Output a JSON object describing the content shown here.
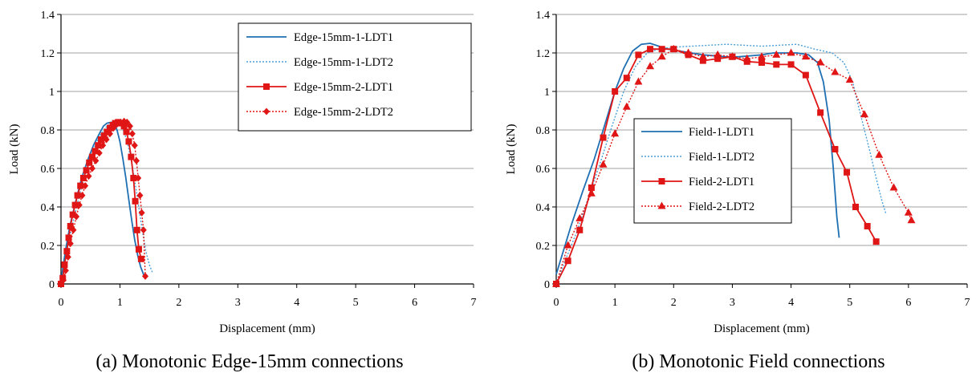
{
  "chart_data": [
    {
      "type": "line",
      "caption": "(a) Monotonic Edge-15mm connections",
      "xlabel": "Displacement (mm)",
      "ylabel": "Load (kN)",
      "xlim": [
        0,
        7
      ],
      "ylim": [
        0,
        1.4
      ],
      "xticks": [
        "0",
        "1",
        "2",
        "3",
        "4",
        "5",
        "6",
        "7"
      ],
      "yticks": [
        "0",
        "0.2",
        "0.4",
        "0.6",
        "0.8",
        "1",
        "1.2",
        "1.4"
      ],
      "grid": "horizontal",
      "legend_position": "top-right",
      "series": [
        {
          "name": "Edge-15mm-1-LDT1",
          "color": "#1f6fb3",
          "dash": "solid",
          "marker": "none",
          "x": [
            0,
            0.03,
            0.08,
            0.15,
            0.25,
            0.35,
            0.45,
            0.55,
            0.65,
            0.72,
            0.78,
            0.85,
            0.9,
            0.95,
            1.0,
            1.05,
            1.1,
            1.15,
            1.2,
            1.25,
            1.3,
            1.35,
            1.4,
            1.45
          ],
          "y": [
            0,
            0.08,
            0.18,
            0.3,
            0.43,
            0.55,
            0.64,
            0.72,
            0.78,
            0.82,
            0.835,
            0.84,
            0.835,
            0.8,
            0.74,
            0.65,
            0.55,
            0.44,
            0.33,
            0.23,
            0.15,
            0.09,
            0.05,
            0.03
          ]
        },
        {
          "name": "Edge-15mm-1-LDT2",
          "color": "#4a9fd8",
          "dash": "dotted",
          "marker": "none",
          "x": [
            0,
            0.04,
            0.1,
            0.18,
            0.28,
            0.38,
            0.48,
            0.58,
            0.68,
            0.78,
            0.86,
            0.93,
            1.0,
            1.07,
            1.13,
            1.2,
            1.26,
            1.32,
            1.38,
            1.44,
            1.5,
            1.55
          ],
          "y": [
            0,
            0.07,
            0.17,
            0.29,
            0.42,
            0.54,
            0.64,
            0.72,
            0.78,
            0.82,
            0.835,
            0.84,
            0.83,
            0.79,
            0.73,
            0.63,
            0.52,
            0.4,
            0.28,
            0.17,
            0.1,
            0.06
          ]
        },
        {
          "name": "Edge-15mm-2-LDT1",
          "color": "#e01515",
          "dash": "solid",
          "marker": "square",
          "x": [
            0,
            0.03,
            0.06,
            0.1,
            0.13,
            0.16,
            0.2,
            0.24,
            0.28,
            0.33,
            0.38,
            0.43,
            0.48,
            0.53,
            0.58,
            0.63,
            0.68,
            0.73,
            0.78,
            0.83,
            0.88,
            0.92,
            0.97,
            1.02,
            1.07,
            1.11,
            1.15,
            1.19,
            1.23,
            1.26,
            1.29,
            1.32,
            1.36
          ],
          "y": [
            0,
            0.03,
            0.1,
            0.17,
            0.24,
            0.3,
            0.36,
            0.41,
            0.46,
            0.51,
            0.55,
            0.59,
            0.63,
            0.66,
            0.69,
            0.72,
            0.75,
            0.77,
            0.79,
            0.81,
            0.825,
            0.835,
            0.84,
            0.835,
            0.82,
            0.79,
            0.74,
            0.66,
            0.55,
            0.43,
            0.28,
            0.18,
            0.13
          ]
        },
        {
          "name": "Edge-15mm-2-LDT2",
          "color": "#e01515",
          "dash": "dotted",
          "marker": "diamond",
          "x": [
            0,
            0.04,
            0.08,
            0.12,
            0.16,
            0.21,
            0.26,
            0.31,
            0.36,
            0.41,
            0.47,
            0.53,
            0.59,
            0.65,
            0.71,
            0.77,
            0.83,
            0.89,
            0.95,
            1.01,
            1.07,
            1.12,
            1.17,
            1.21,
            1.25,
            1.28,
            1.31,
            1.34,
            1.37,
            1.4,
            1.43
          ],
          "y": [
            0,
            0.02,
            0.07,
            0.14,
            0.21,
            0.28,
            0.35,
            0.41,
            0.46,
            0.51,
            0.56,
            0.6,
            0.64,
            0.68,
            0.72,
            0.75,
            0.78,
            0.81,
            0.83,
            0.84,
            0.845,
            0.84,
            0.82,
            0.78,
            0.72,
            0.64,
            0.55,
            0.46,
            0.37,
            0.28,
            0.04
          ]
        }
      ]
    },
    {
      "type": "line",
      "caption": "(b) Monotonic Field connections",
      "xlabel": "Displacement (mm)",
      "ylabel": "Load (kN)",
      "xlim": [
        0,
        7
      ],
      "ylim": [
        0,
        1.4
      ],
      "xticks": [
        "0",
        "1",
        "2",
        "3",
        "4",
        "5",
        "6",
        "7"
      ],
      "yticks": [
        "0",
        "0.2",
        "0.4",
        "0.6",
        "0.8",
        "1",
        "1.2",
        "1.4"
      ],
      "grid": "horizontal",
      "legend_position": "center-left",
      "series": [
        {
          "name": "Field-1-LDT1",
          "color": "#1f6fb3",
          "dash": "solid",
          "marker": "none",
          "x": [
            0,
            0.1,
            0.25,
            0.45,
            0.65,
            0.85,
            1.0,
            1.15,
            1.3,
            1.45,
            1.6,
            1.75,
            1.9,
            2.1,
            2.3,
            2.5,
            2.7,
            2.9,
            3.1,
            3.3,
            3.5,
            3.7,
            3.9,
            4.1,
            4.3,
            4.45,
            4.55,
            4.65,
            4.72,
            4.78,
            4.82
          ],
          "y": [
            0.05,
            0.15,
            0.3,
            0.48,
            0.65,
            0.85,
            1.0,
            1.12,
            1.21,
            1.245,
            1.25,
            1.235,
            1.22,
            1.21,
            1.2,
            1.19,
            1.185,
            1.18,
            1.18,
            1.185,
            1.19,
            1.2,
            1.2,
            1.2,
            1.19,
            1.15,
            1.05,
            0.85,
            0.6,
            0.35,
            0.24
          ]
        },
        {
          "name": "Field-1-LDT2",
          "color": "#4a9fd8",
          "dash": "dotted",
          "marker": "none",
          "x": [
            0,
            0.15,
            0.35,
            0.55,
            0.75,
            0.95,
            1.15,
            1.35,
            1.55,
            1.75,
            2.0,
            2.3,
            2.6,
            2.9,
            3.2,
            3.5,
            3.8,
            4.1,
            4.4,
            4.7,
            4.9,
            5.05,
            5.15,
            5.25,
            5.35,
            5.45,
            5.55,
            5.62
          ],
          "y": [
            0,
            0.12,
            0.27,
            0.45,
            0.63,
            0.82,
            1.0,
            1.13,
            1.2,
            1.22,
            1.23,
            1.235,
            1.24,
            1.245,
            1.24,
            1.235,
            1.24,
            1.245,
            1.22,
            1.2,
            1.15,
            1.05,
            0.92,
            0.8,
            0.68,
            0.55,
            0.43,
            0.36
          ]
        },
        {
          "name": "Field-2-LDT1",
          "color": "#e01515",
          "dash": "solid",
          "marker": "square",
          "x": [
            0,
            0.2,
            0.4,
            0.6,
            0.8,
            1.0,
            1.2,
            1.4,
            1.6,
            1.8,
            2.0,
            2.25,
            2.5,
            2.75,
            3.0,
            3.25,
            3.5,
            3.75,
            4.0,
            4.25,
            4.5,
            4.75,
            4.95,
            5.1,
            5.3,
            5.45
          ],
          "y": [
            0,
            0.12,
            0.28,
            0.5,
            0.76,
            1.0,
            1.07,
            1.19,
            1.22,
            1.22,
            1.22,
            1.19,
            1.16,
            1.17,
            1.18,
            1.155,
            1.15,
            1.14,
            1.14,
            1.085,
            0.89,
            0.7,
            0.58,
            0.4,
            0.3,
            0.22
          ]
        },
        {
          "name": "Field-2-LDT2",
          "color": "#e01515",
          "dash": "dotted",
          "marker": "triangle",
          "x": [
            0,
            0.2,
            0.4,
            0.6,
            0.8,
            1.0,
            1.2,
            1.4,
            1.6,
            1.8,
            2.0,
            2.25,
            2.5,
            2.75,
            3.0,
            3.25,
            3.5,
            3.75,
            4.0,
            4.25,
            4.5,
            4.75,
            5.0,
            5.25,
            5.5,
            5.75,
            6.0,
            6.05
          ],
          "y": [
            0,
            0.2,
            0.34,
            0.47,
            0.62,
            0.78,
            0.92,
            1.05,
            1.13,
            1.18,
            1.22,
            1.2,
            1.18,
            1.19,
            1.18,
            1.17,
            1.18,
            1.19,
            1.2,
            1.18,
            1.15,
            1.1,
            1.06,
            0.88,
            0.67,
            0.5,
            0.37,
            0.33
          ]
        }
      ]
    }
  ]
}
